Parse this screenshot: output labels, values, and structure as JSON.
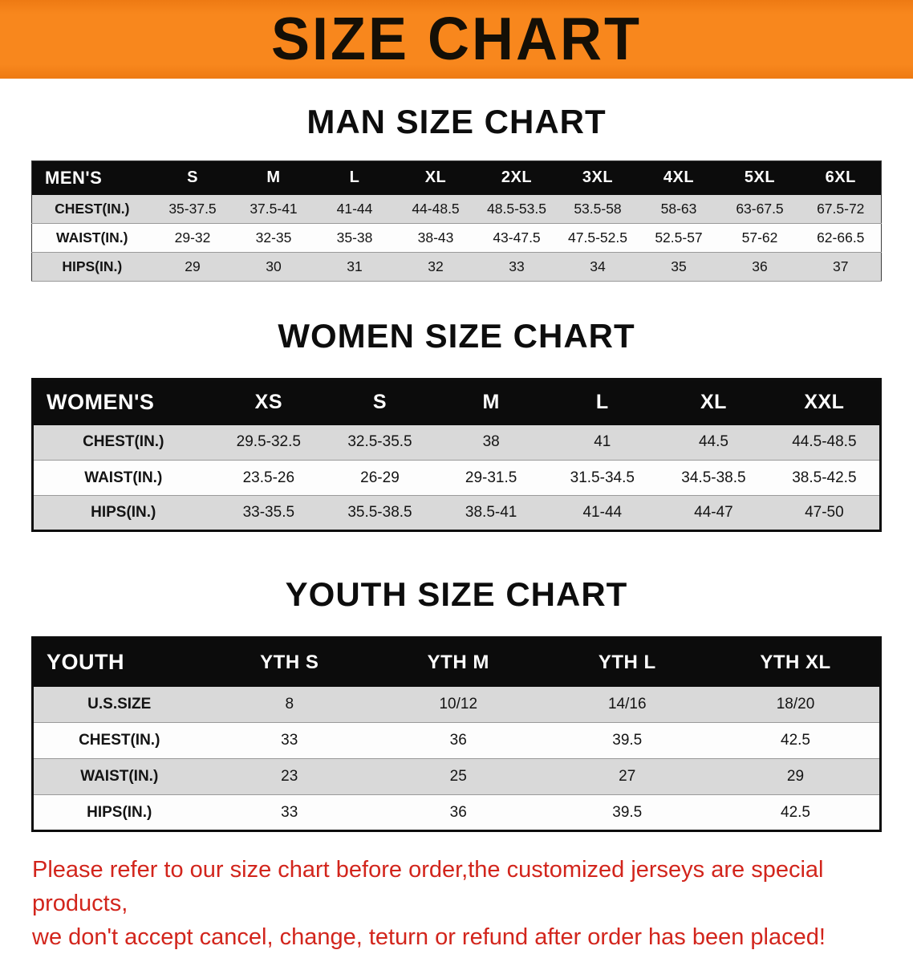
{
  "banner": {
    "title": "SIZE CHART",
    "bg_color": "#f8871d"
  },
  "sections": [
    {
      "id": "men",
      "heading": "MAN SIZE CHART",
      "table": {
        "header": [
          "MEN'S",
          "S",
          "M",
          "L",
          "XL",
          "2XL",
          "3XL",
          "4XL",
          "5XL",
          "6XL"
        ],
        "rows": [
          {
            "label": "CHEST(IN.)",
            "values": [
              "35-37.5",
              "37.5-41",
              "41-44",
              "44-48.5",
              "48.5-53.5",
              "53.5-58",
              "58-63",
              "63-67.5",
              "67.5-72"
            ]
          },
          {
            "label": "WAIST(IN.)",
            "values": [
              "29-32",
              "32-35",
              "35-38",
              "38-43",
              "43-47.5",
              "47.5-52.5",
              "52.5-57",
              "57-62",
              "62-66.5"
            ]
          },
          {
            "label": "HIPS(IN.)",
            "values": [
              "29",
              "30",
              "31",
              "32",
              "33",
              "34",
              "35",
              "36",
              "37"
            ]
          }
        ]
      }
    },
    {
      "id": "women",
      "heading": "WOMEN SIZE CHART",
      "table": {
        "header": [
          "WOMEN'S",
          "XS",
          "S",
          "M",
          "L",
          "XL",
          "XXL"
        ],
        "rows": [
          {
            "label": "CHEST(IN.)",
            "values": [
              "29.5-32.5",
              "32.5-35.5",
              "38",
              "41",
              "44.5",
              "44.5-48.5"
            ]
          },
          {
            "label": "WAIST(IN.)",
            "values": [
              "23.5-26",
              "26-29",
              "29-31.5",
              "31.5-34.5",
              "34.5-38.5",
              "38.5-42.5"
            ]
          },
          {
            "label": "HIPS(IN.)",
            "values": [
              "33-35.5",
              "35.5-38.5",
              "38.5-41",
              "41-44",
              "44-47",
              "47-50"
            ]
          }
        ]
      }
    },
    {
      "id": "youth",
      "heading": "YOUTH SIZE CHART",
      "table": {
        "header": [
          "YOUTH",
          "YTH S",
          "YTH M",
          "YTH L",
          "YTH XL"
        ],
        "rows": [
          {
            "label": "U.S.SIZE",
            "values": [
              "8",
              "10/12",
              "14/16",
              "18/20"
            ]
          },
          {
            "label": "CHEST(IN.)",
            "values": [
              "33",
              "36",
              "39.5",
              "42.5"
            ]
          },
          {
            "label": "WAIST(IN.)",
            "values": [
              "23",
              "25",
              "27",
              "29"
            ]
          },
          {
            "label": "HIPS(IN.)",
            "values": [
              "33",
              "36",
              "39.5",
              "42.5"
            ]
          }
        ]
      }
    }
  ],
  "disclaimer": {
    "color": "#d2251c",
    "lines": [
      "Please refer to our size chart before order,the customized jerseys are special products,",
      "we don't accept cancel, change, teturn or refund after order has been placed!"
    ]
  }
}
